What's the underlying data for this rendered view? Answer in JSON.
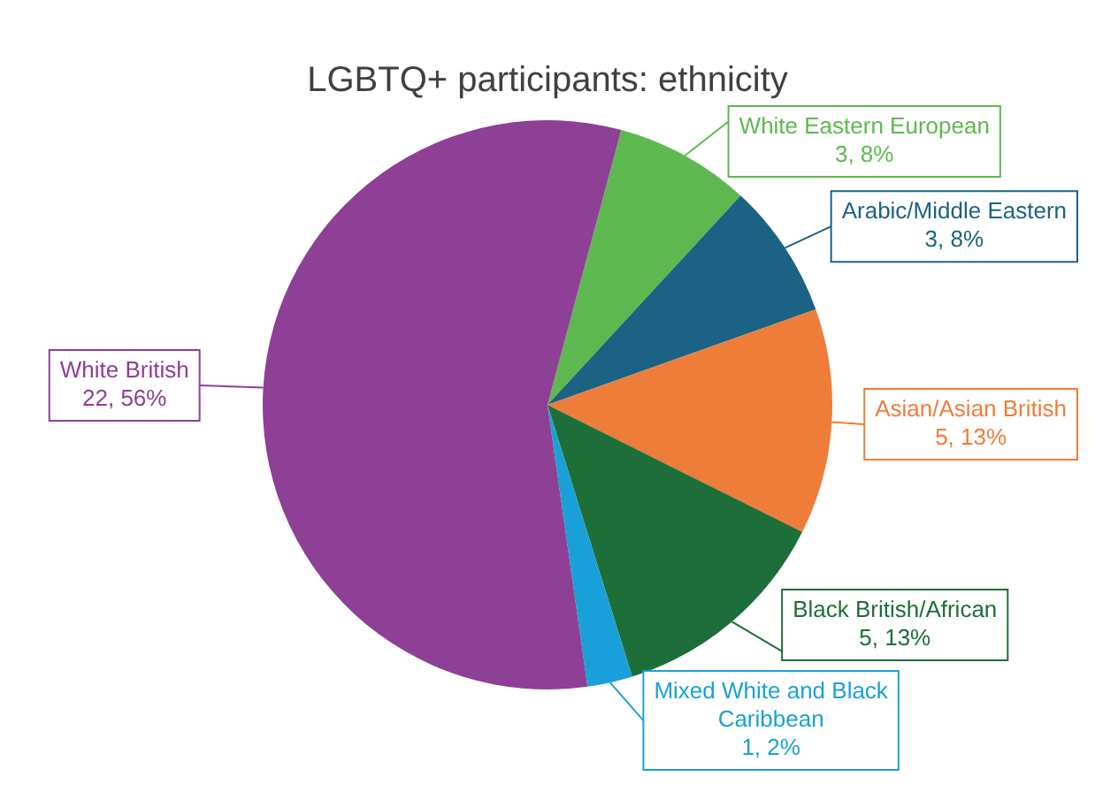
{
  "chart_data": {
    "type": "pie",
    "title": "LGBTQ+ participants: ethnicity",
    "categories": [
      "White Eastern European",
      "Arabic/Middle Eastern",
      "Asian/Asian British",
      "Black British/African",
      "Mixed White and Black Caribbean",
      "White British"
    ],
    "values": [
      3,
      3,
      5,
      5,
      1,
      22
    ],
    "value_labels": [
      "3, 8%",
      "3, 8%",
      "5, 13%",
      "5, 13%",
      "1, 2%",
      "22, 56%"
    ],
    "colors": [
      "#5db94f",
      "#1b6284",
      "#ef7d3a",
      "#1e6e3a",
      "#1aa0d8",
      "#8e3f96"
    ],
    "legend": false
  }
}
